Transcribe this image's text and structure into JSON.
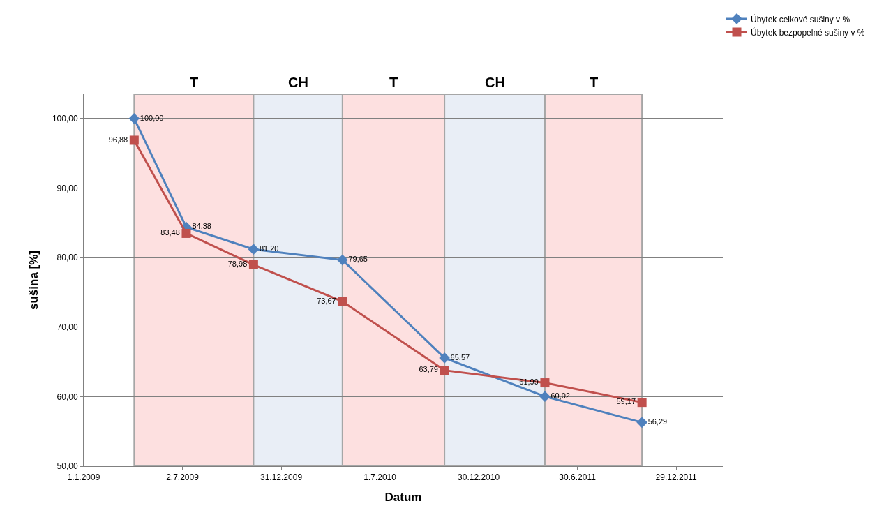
{
  "chart_data": {
    "type": "line",
    "xlabel": "Datum",
    "ylabel": "sušina [%]",
    "x": [
      "2009-04-04",
      "2009-07-09",
      "2009-11-10",
      "2010-04-23",
      "2010-10-28",
      "2011-05-01",
      "2011-10-27"
    ],
    "series": [
      {
        "name": "Úbytek celkové sušiny v %",
        "color": "#4f81bd",
        "marker": "diamond",
        "values": [
          100.0,
          84.38,
          81.2,
          79.65,
          65.57,
          60.02,
          56.29
        ],
        "value_labels": [
          "100,00",
          "84,38",
          "81,20",
          "79,65",
          "65,57",
          "60,02",
          "56,29"
        ]
      },
      {
        "name": "Úbytek bezpopelné sušiny v %",
        "color": "#c0504d",
        "marker": "square",
        "values": [
          96.88,
          83.48,
          78.98,
          73.67,
          63.79,
          61.99,
          59.17
        ],
        "value_labels": [
          "96,88",
          "83,48",
          "78,98",
          "73,67",
          "63,79",
          "61,99",
          "59,17"
        ]
      }
    ],
    "xlim": [
      "2009-01-01",
      "2012-03-24"
    ],
    "xticks": [
      {
        "value": "2009-01-01",
        "label": "1.1.2009"
      },
      {
        "value": "2009-07-02",
        "label": "2.7.2009"
      },
      {
        "value": "2009-12-31",
        "label": "31.12.2009"
      },
      {
        "value": "2010-07-01",
        "label": "1.7.2010"
      },
      {
        "value": "2010-12-30",
        "label": "30.12.2010"
      },
      {
        "value": "2011-06-30",
        "label": "30.6.2011"
      },
      {
        "value": "2011-12-29",
        "label": "29.12.2011"
      }
    ],
    "ylim": [
      50,
      103.5
    ],
    "yticks": [
      {
        "value": 50,
        "label": "50,00"
      },
      {
        "value": 60,
        "label": "60,00"
      },
      {
        "value": 70,
        "label": "70,00"
      },
      {
        "value": 80,
        "label": "80,00"
      },
      {
        "value": 90,
        "label": "90,00"
      },
      {
        "value": 100,
        "label": "100,00"
      }
    ],
    "bands": [
      {
        "axis": "x",
        "from": "2009-04-04",
        "to": "2009-11-10",
        "label": "T",
        "color": "#fde0e0"
      },
      {
        "axis": "x",
        "from": "2009-11-10",
        "to": "2010-04-23",
        "label": "CH",
        "color": "#e9eef6"
      },
      {
        "axis": "x",
        "from": "2010-04-23",
        "to": "2010-10-28",
        "label": "T",
        "color": "#fde0e0"
      },
      {
        "axis": "x",
        "from": "2010-10-28",
        "to": "2011-05-01",
        "label": "CH",
        "color": "#e9eef6"
      },
      {
        "axis": "x",
        "from": "2011-05-01",
        "to": "2011-10-27",
        "label": "T",
        "color": "#fde0e0"
      }
    ],
    "grid": "y",
    "legend": "top right"
  }
}
